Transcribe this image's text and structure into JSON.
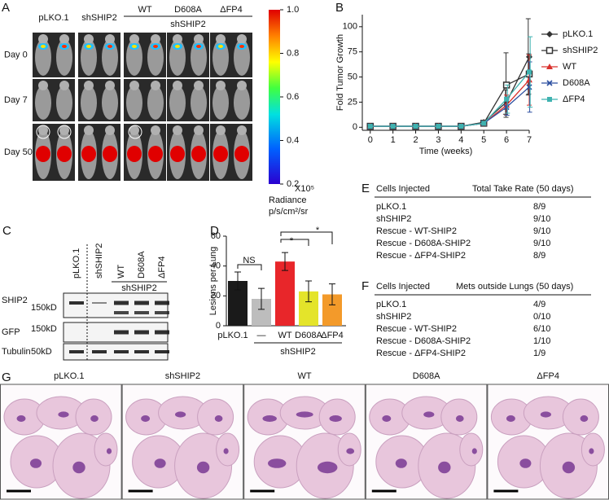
{
  "imaging": {
    "label": "A",
    "groups": [
      "pLKO.1",
      "shSHIP2",
      "WT",
      "D608A",
      "ΔFP4"
    ],
    "subgroup": "shSHIP2",
    "rows": [
      "Day 0",
      "Day 7",
      "Day 50"
    ],
    "colorbar": {
      "range": [
        0.2,
        1.0
      ],
      "ticks": [
        {
          "value": 1.0,
          "label": "1.0"
        },
        {
          "value": 0.8,
          "label": "0.8"
        },
        {
          "value": 0.6,
          "label": "0.6"
        },
        {
          "value": 0.4,
          "label": "0.4"
        },
        {
          "value": 0.2,
          "label": "0.2"
        }
      ],
      "multiplier": "X10⁵",
      "title": "Radiance",
      "unit": "p/s/cm²/sr"
    }
  },
  "chart_data": [
    {
      "type": "line",
      "label": "B",
      "xlabel": "Time (weeks)",
      "ylabel": "Fold Tumor Growth",
      "x": [
        0,
        1,
        2,
        3,
        4,
        5,
        6,
        7
      ],
      "xlim": [
        -0.35,
        7
      ],
      "xticks": [
        0,
        1,
        2,
        3,
        4,
        5,
        6,
        7
      ],
      "ylim": [
        -3,
        112
      ],
      "yticks": [
        0,
        25,
        50,
        75,
        100
      ],
      "series": [
        {
          "name": "pLKO.1",
          "color": "#333333",
          "marker": "diamond",
          "values": [
            1,
            1,
            1,
            1,
            1,
            5,
            25,
            70
          ],
          "errors": [
            null,
            null,
            null,
            null,
            null,
            null,
            12,
            38
          ]
        },
        {
          "name": "shSHIP2",
          "color": "#333333",
          "marker": "square-open",
          "values": [
            1,
            1,
            1,
            1,
            1,
            4,
            42,
            53
          ],
          "errors": [
            null,
            null,
            null,
            null,
            null,
            null,
            32,
            20
          ]
        },
        {
          "name": "WT",
          "color": "#d9302c",
          "marker": "triangle",
          "values": [
            1,
            1,
            1,
            1,
            1,
            4,
            22,
            47
          ],
          "errors": [
            null,
            null,
            null,
            null,
            null,
            null,
            10,
            25
          ]
        },
        {
          "name": "D608A",
          "color": "#2c4fa0",
          "marker": "x",
          "values": [
            1,
            1,
            1,
            1,
            1,
            4,
            20,
            40
          ],
          "errors": [
            null,
            null,
            null,
            null,
            null,
            null,
            8,
            25
          ]
        },
        {
          "name": "ΔFP4",
          "color": "#3fb2b0",
          "marker": "square",
          "values": [
            1,
            1,
            1,
            1,
            1,
            4,
            28,
            55
          ],
          "errors": [
            null,
            null,
            null,
            null,
            null,
            null,
            14,
            35
          ]
        }
      ]
    },
    {
      "type": "bar",
      "label": "D",
      "ylabel": "Lesions per Lung",
      "categories": [
        "pLKO.1",
        "—",
        "WT",
        "D608A",
        "ΔFP4"
      ],
      "group_label": "shSHIP2",
      "values": [
        30,
        18,
        43,
        23,
        21
      ],
      "errors": [
        6,
        7,
        6,
        7,
        7
      ],
      "colors": [
        "#1a1a1a",
        "#bdbdbd",
        "#e8262a",
        "#e4e42a",
        "#f39a2a"
      ],
      "ylim": [
        0,
        60
      ],
      "yticks": [
        0,
        20,
        40,
        60
      ],
      "annotations": [
        "NS",
        "*",
        "*"
      ]
    }
  ],
  "blot": {
    "label": "C",
    "lanes": [
      "pLKO.1",
      "shSHIP2",
      "WT",
      "D608A",
      "ΔFP4"
    ],
    "subgroup": "shSHIP2",
    "rows": [
      "SHIP2",
      "GFP",
      "Tubulin"
    ],
    "markers": [
      "150kD",
      "150kD",
      "50kD"
    ]
  },
  "table_e": {
    "label": "E",
    "header": [
      "Cells Injected",
      "Total Take Rate (50 days)"
    ],
    "rows": [
      [
        "pLKO.1",
        "8/9"
      ],
      [
        "shSHIP2",
        "9/10"
      ],
      [
        "Rescue - WT-SHIP2",
        "9/10"
      ],
      [
        "Rescue - D608A-SHIP2",
        "9/10"
      ],
      [
        "Rescue - ΔFP4-SHIP2",
        "8/9"
      ]
    ]
  },
  "table_f": {
    "label": "F",
    "header": [
      "Cells Injected",
      "Mets outside Lungs (50 days)"
    ],
    "rows": [
      [
        "pLKO.1",
        "4/9"
      ],
      [
        "shSHIP2",
        "0/10"
      ],
      [
        "Rescue - WT-SHIP2",
        "6/10"
      ],
      [
        "Rescue - D608A-SHIP2",
        "1/10"
      ],
      [
        "Rescue - ΔFP4-SHIP2",
        "1/9"
      ]
    ]
  },
  "histology": {
    "label": "G",
    "panels": [
      "pLKO.1",
      "shSHIP2",
      "WT",
      "D608A",
      "ΔFP4"
    ]
  }
}
